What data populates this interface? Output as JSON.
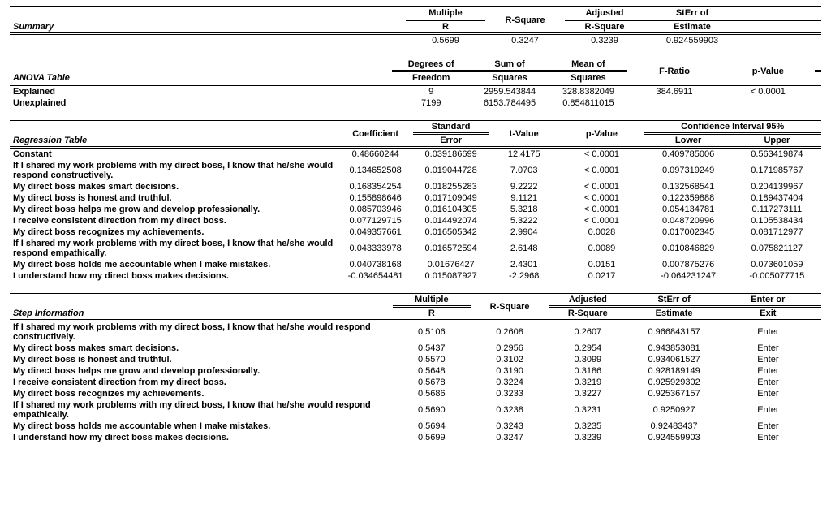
{
  "summary": {
    "title": "Summary",
    "headers": {
      "c1": "Multiple R",
      "c2": "R-Square",
      "c3": "Adjusted R-Square",
      "c4": "StErr of Estimate"
    },
    "row": {
      "c1": "0.5699",
      "c2": "0.3247",
      "c3": "0.3239",
      "c4": "0.924559903"
    }
  },
  "anova": {
    "title": "ANOVA Table",
    "headers": {
      "c1": "Degrees of Freedom",
      "c2": "Sum of Squares",
      "c3": "Mean of Squares",
      "c4": "F-Ratio",
      "c5": "p-Value"
    },
    "rows": [
      {
        "label": "Explained",
        "c1": "9",
        "c2": "2959.543844",
        "c3": "328.8382049",
        "c4": "384.6911",
        "c5": "< 0.0001"
      },
      {
        "label": "Unexplained",
        "c1": "7199",
        "c2": "6153.784495",
        "c3": "0.854811015",
        "c4": "",
        "c5": ""
      }
    ]
  },
  "regression": {
    "title": "Regression Table",
    "headers": {
      "c1": "Coefficient",
      "c2": "Standard Error",
      "c3": "t-Value",
      "c4": "p-Value",
      "ci": "Confidence Interval 95%",
      "c5": "Lower",
      "c6": "Upper"
    },
    "rows": [
      {
        "label": "Constant",
        "c1": "0.48660244",
        "c2": "0.039186699",
        "c3": "12.4175",
        "c4": "< 0.0001",
        "c5": "0.409785006",
        "c6": "0.563419874"
      },
      {
        "label": "If I shared my work problems with my direct boss, I know that he/she would respond constructively.",
        "c1": "0.134652508",
        "c2": "0.019044728",
        "c3": "7.0703",
        "c4": "< 0.0001",
        "c5": "0.097319249",
        "c6": "0.171985767"
      },
      {
        "label": "My direct boss makes smart decisions.",
        "c1": "0.168354254",
        "c2": "0.018255283",
        "c3": "9.2222",
        "c4": "< 0.0001",
        "c5": "0.132568541",
        "c6": "0.204139967"
      },
      {
        "label": "My direct boss is honest and truthful.",
        "c1": "0.155898646",
        "c2": "0.017109049",
        "c3": "9.1121",
        "c4": "< 0.0001",
        "c5": "0.122359888",
        "c6": "0.189437404"
      },
      {
        "label": "My direct boss helps me grow and develop professionally.",
        "c1": "0.085703946",
        "c2": "0.016104305",
        "c3": "5.3218",
        "c4": "< 0.0001",
        "c5": "0.054134781",
        "c6": "0.117273111"
      },
      {
        "label": "I receive consistent direction from my direct boss.",
        "c1": "0.077129715",
        "c2": "0.014492074",
        "c3": "5.3222",
        "c4": "< 0.0001",
        "c5": "0.048720996",
        "c6": "0.105538434"
      },
      {
        "label": "My direct boss recognizes my achievements.",
        "c1": "0.049357661",
        "c2": "0.016505342",
        "c3": "2.9904",
        "c4": "0.0028",
        "c5": "0.017002345",
        "c6": "0.081712977"
      },
      {
        "label": "If I shared my work problems with my direct boss, I know that he/she would respond empathically.",
        "c1": "0.043333978",
        "c2": "0.016572594",
        "c3": "2.6148",
        "c4": "0.0089",
        "c5": "0.010846829",
        "c6": "0.075821127"
      },
      {
        "label": "My direct boss holds me accountable when I make mistakes.",
        "c1": "0.040738168",
        "c2": "0.01676427",
        "c3": "2.4301",
        "c4": "0.0151",
        "c5": "0.007875276",
        "c6": "0.073601059"
      },
      {
        "label": "I understand how my direct boss makes decisions.",
        "c1": "-0.034654481",
        "c2": "0.015087927",
        "c3": "-2.2968",
        "c4": "0.0217",
        "c5": "-0.064231247",
        "c6": "-0.005077715"
      }
    ]
  },
  "step": {
    "title": "Step Information",
    "headers": {
      "c1": "Multiple R",
      "c2": "R-Square",
      "c3": "Adjusted R-Square",
      "c4": "StErr of Estimate",
      "c5": "Enter or Exit"
    },
    "rows": [
      {
        "label": "If I shared my work problems with my direct boss, I know that he/she would respond constructively.",
        "c1": "0.5106",
        "c2": "0.2608",
        "c3": "0.2607",
        "c4": "0.966843157",
        "c5": "Enter"
      },
      {
        "label": "My direct boss makes smart decisions.",
        "c1": "0.5437",
        "c2": "0.2956",
        "c3": "0.2954",
        "c4": "0.943853081",
        "c5": "Enter"
      },
      {
        "label": "My direct boss is honest and truthful.",
        "c1": "0.5570",
        "c2": "0.3102",
        "c3": "0.3099",
        "c4": "0.934061527",
        "c5": "Enter"
      },
      {
        "label": "My direct boss helps me grow and develop professionally.",
        "c1": "0.5648",
        "c2": "0.3190",
        "c3": "0.3186",
        "c4": "0.928189149",
        "c5": "Enter"
      },
      {
        "label": "I receive consistent direction from my direct boss.",
        "c1": "0.5678",
        "c2": "0.3224",
        "c3": "0.3219",
        "c4": "0.925929302",
        "c5": "Enter"
      },
      {
        "label": "My direct boss recognizes my achievements.",
        "c1": "0.5686",
        "c2": "0.3233",
        "c3": "0.3227",
        "c4": "0.925367157",
        "c5": "Enter"
      },
      {
        "label": "If I shared my work problems with my direct boss, I know that he/she would respond empathically.",
        "c1": "0.5690",
        "c2": "0.3238",
        "c3": "0.3231",
        "c4": "0.9250927",
        "c5": "Enter"
      },
      {
        "label": "My direct boss holds me accountable when I make mistakes.",
        "c1": "0.5694",
        "c2": "0.3243",
        "c3": "0.3235",
        "c4": "0.92483437",
        "c5": "Enter"
      },
      {
        "label": "I understand how my direct boss makes decisions.",
        "c1": "0.5699",
        "c2": "0.3247",
        "c3": "0.3239",
        "c4": "0.924559903",
        "c5": "Enter"
      }
    ]
  }
}
